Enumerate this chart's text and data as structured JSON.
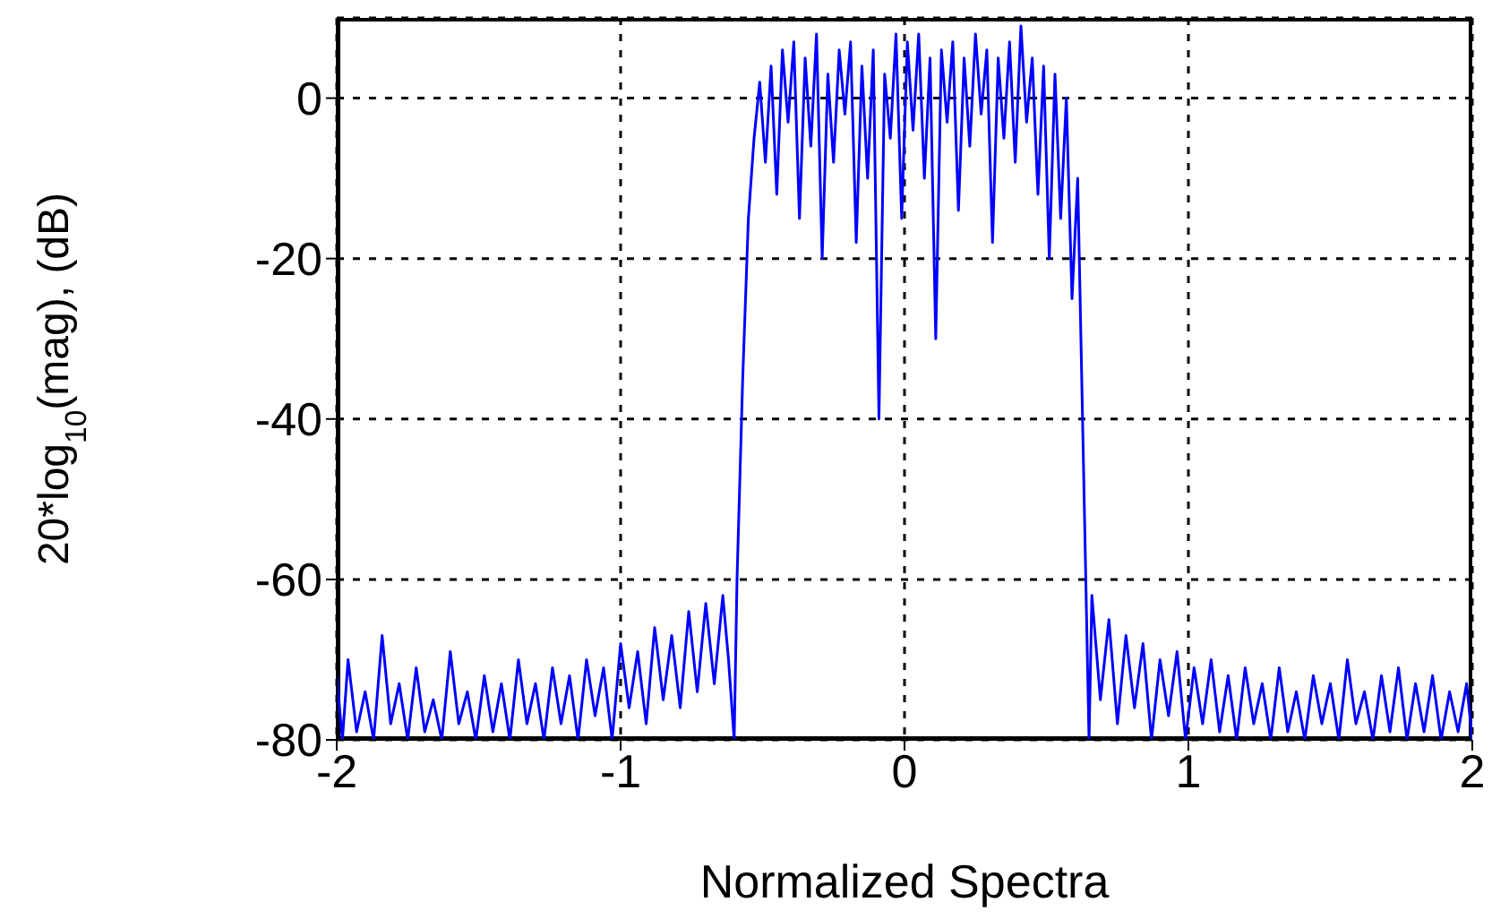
{
  "chart_data": {
    "type": "line",
    "xlabel": "Normalized Spectra",
    "ylabel": "20*log$_{10}$(mag), (dB)",
    "xlim": [
      -2,
      2
    ],
    "xticks": [
      -2,
      -1,
      0,
      1,
      2
    ],
    "ylim": [
      -80,
      10
    ],
    "yticks": [
      -80,
      -60,
      -40,
      -20,
      0
    ],
    "grid": true,
    "legend": false,
    "marker": "none",
    "line_style": "solid",
    "series": [
      {
        "color": "#0000ff",
        "x": [
          -2,
          -1.98,
          -1.96,
          -1.93,
          -1.9,
          -1.87,
          -1.84,
          -1.81,
          -1.78,
          -1.75,
          -1.72,
          -1.69,
          -1.66,
          -1.63,
          -1.6,
          -1.57,
          -1.54,
          -1.51,
          -1.48,
          -1.45,
          -1.42,
          -1.39,
          -1.36,
          -1.33,
          -1.3,
          -1.27,
          -1.24,
          -1.21,
          -1.18,
          -1.15,
          -1.12,
          -1.09,
          -1.06,
          -1.03,
          -1,
          -0.97,
          -0.94,
          -0.91,
          -0.88,
          -0.85,
          -0.82,
          -0.79,
          -0.76,
          -0.73,
          -0.7,
          -0.67,
          -0.64,
          -0.62,
          -0.6,
          -0.59,
          -0.57,
          -0.55,
          -0.53,
          -0.51,
          -0.49,
          -0.47,
          -0.45,
          -0.43,
          -0.41,
          -0.39,
          -0.37,
          -0.35,
          -0.33,
          -0.31,
          -0.29,
          -0.27,
          -0.25,
          -0.23,
          -0.21,
          -0.19,
          -0.17,
          -0.15,
          -0.13,
          -0.11,
          -0.09,
          -0.07,
          -0.05,
          -0.03,
          -0.01,
          0.01,
          0.03,
          0.05,
          0.07,
          0.09,
          0.11,
          0.13,
          0.15,
          0.17,
          0.19,
          0.21,
          0.23,
          0.25,
          0.27,
          0.29,
          0.31,
          0.33,
          0.35,
          0.37,
          0.39,
          0.41,
          0.43,
          0.45,
          0.47,
          0.49,
          0.51,
          0.53,
          0.55,
          0.57,
          0.59,
          0.61,
          0.63,
          0.65,
          0.66,
          0.69,
          0.72,
          0.75,
          0.78,
          0.81,
          0.84,
          0.87,
          0.9,
          0.93,
          0.96,
          0.99,
          1.02,
          1.05,
          1.08,
          1.11,
          1.14,
          1.17,
          1.2,
          1.23,
          1.26,
          1.29,
          1.32,
          1.35,
          1.38,
          1.41,
          1.44,
          1.47,
          1.5,
          1.53,
          1.56,
          1.59,
          1.62,
          1.65,
          1.68,
          1.71,
          1.74,
          1.77,
          1.8,
          1.83,
          1.86,
          1.89,
          1.92,
          1.95,
          1.98,
          2
        ],
        "values": [
          -72,
          -80,
          -70,
          -79,
          -74,
          -80,
          -67,
          -78,
          -73,
          -80,
          -71,
          -79,
          -75,
          -80,
          -69,
          -78,
          -74,
          -80,
          -72,
          -79,
          -73,
          -80,
          -70,
          -78,
          -73,
          -80,
          -71,
          -78,
          -72,
          -80,
          -70,
          -77,
          -71,
          -80,
          -68,
          -76,
          -69,
          -78,
          -66,
          -75,
          -67,
          -76,
          -64,
          -74,
          -63,
          -73,
          -62,
          -70,
          -80,
          -60,
          -35,
          -15,
          -5,
          2,
          -8,
          4,
          -12,
          6,
          -3,
          7,
          -15,
          5,
          -6,
          8,
          -20,
          3,
          -8,
          6,
          -2,
          7,
          -18,
          4,
          -10,
          6,
          -40,
          3,
          -5,
          8,
          -15,
          7,
          -4,
          8,
          -10,
          5,
          -30,
          6,
          -3,
          7,
          -14,
          5,
          -6,
          8,
          -2,
          6,
          -18,
          5,
          -5,
          7,
          -8,
          9,
          -3,
          5,
          -12,
          4,
          -20,
          3,
          -15,
          0,
          -25,
          -10,
          -45,
          -80,
          -62,
          -75,
          -65,
          -78,
          -67,
          -76,
          -68,
          -80,
          -70,
          -77,
          -69,
          -80,
          -71,
          -78,
          -70,
          -79,
          -72,
          -80,
          -71,
          -78,
          -73,
          -80,
          -71,
          -79,
          -74,
          -80,
          -72,
          -78,
          -73,
          -80,
          -70,
          -78,
          -74,
          -80,
          -72,
          -79,
          -71,
          -80,
          -73,
          -79,
          -72,
          -80,
          -74,
          -79,
          -73,
          -80
        ]
      }
    ]
  }
}
